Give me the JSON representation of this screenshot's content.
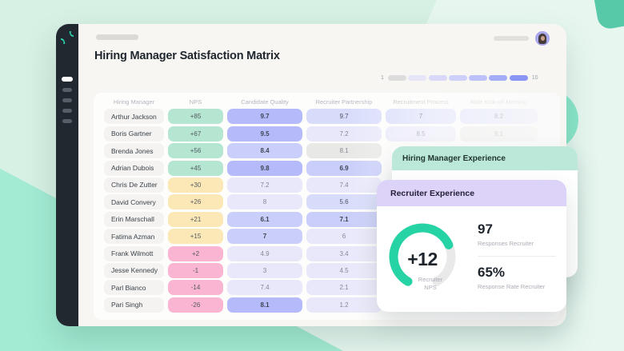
{
  "header": {
    "title": "Hiring Manager Satisfaction Matrix"
  },
  "legend": {
    "min_label": "1",
    "max_label": "10",
    "colors": [
      "#dcdcdc",
      "#e7e5f8",
      "#dad8f8",
      "#cdd1f9",
      "#bcc2f9",
      "#a4adf7",
      "#8a95f4"
    ]
  },
  "sidebar": {
    "nav_items": [
      {
        "active": true
      },
      {
        "active": false
      },
      {
        "active": false
      },
      {
        "active": false
      },
      {
        "active": false
      }
    ]
  },
  "palette": {
    "green": "#b4e6d1",
    "yellow": "#fbe8b6",
    "pink": "#f9b5d2",
    "t1": "#b4bafa",
    "t2": "#c9cefb",
    "t3": "#d8dcfb",
    "t4": "#e9e8fb",
    "gray": "#e8e8e7",
    "nps_text": "#545a62",
    "gauge_teal": "#25d3a5",
    "gauge_track": "#e9e9e9",
    "sidebar_bg": "#212830",
    "logo_teal": "#2bd4a8"
  },
  "table": {
    "columns": [
      "Hiring Manager",
      "NPS",
      "Candidate Quality",
      "Recruiter Partnership",
      "Recruitment Process",
      "Role Kick-off Meeting"
    ],
    "rows": [
      {
        "name": "Arthur Jackson",
        "nps": "+85",
        "nps_tone": "green",
        "cells": [
          {
            "v": "9.7",
            "t": "t1"
          },
          {
            "v": "9.7",
            "t": "t3"
          },
          {
            "v": "7",
            "t": "t3"
          },
          {
            "v": "8.2",
            "t": "t3"
          }
        ]
      },
      {
        "name": "Boris Gartner",
        "nps": "+67",
        "nps_tone": "green",
        "cells": [
          {
            "v": "9.5",
            "t": "t1"
          },
          {
            "v": "7.2",
            "t": "t4"
          },
          {
            "v": "8.5",
            "t": "t4"
          },
          {
            "v": "9.1",
            "t": "gray"
          }
        ]
      },
      {
        "name": "Brenda Jones",
        "nps": "+56",
        "nps_tone": "green",
        "cells": [
          {
            "v": "8.4",
            "t": "t2"
          },
          {
            "v": "8.1",
            "t": "gray"
          },
          null,
          null
        ]
      },
      {
        "name": "Adrian Dubois",
        "nps": "+45",
        "nps_tone": "green",
        "cells": [
          {
            "v": "9.8",
            "t": "t1"
          },
          {
            "v": "6.9",
            "t": "t2"
          },
          null,
          null
        ]
      },
      {
        "name": "Chris De Zutter",
        "nps": "+30",
        "nps_tone": "yellow",
        "cells": [
          {
            "v": "7.2",
            "t": "t4",
            "d": true
          },
          {
            "v": "7.4",
            "t": "t4"
          },
          null,
          null
        ]
      },
      {
        "name": "David Convery",
        "nps": "+26",
        "nps_tone": "yellow",
        "cells": [
          {
            "v": "8",
            "t": "t4",
            "d": true
          },
          {
            "v": "5.6",
            "t": "t3",
            "d": true
          },
          null,
          null
        ]
      },
      {
        "name": "Erin Marschall",
        "nps": "+21",
        "nps_tone": "yellow",
        "cells": [
          {
            "v": "6.1",
            "t": "t2"
          },
          {
            "v": "7.1",
            "t": "t2",
            "d": true
          },
          null,
          null
        ]
      },
      {
        "name": "Fatima Azman",
        "nps": "+15",
        "nps_tone": "yellow",
        "cells": [
          {
            "v": "7",
            "t": "t2"
          },
          {
            "v": "6",
            "t": "t4"
          },
          null,
          null
        ]
      },
      {
        "name": "Frank Wilmott",
        "nps": "+2",
        "nps_tone": "pink",
        "cells": [
          {
            "v": "4.9",
            "t": "t4",
            "d": true
          },
          {
            "v": "3.4",
            "t": "t4",
            "d": true
          },
          null,
          null
        ]
      },
      {
        "name": "Jesse Kennedy",
        "nps": "-1",
        "nps_tone": "pink",
        "cells": [
          {
            "v": "3",
            "t": "t4",
            "d": true
          },
          {
            "v": "4.5",
            "t": "t4"
          },
          null,
          null
        ]
      },
      {
        "name": "Parl Bianco",
        "nps": "-14",
        "nps_tone": "pink",
        "cells": [
          {
            "v": "7.4",
            "t": "t4",
            "d": true
          },
          {
            "v": "2.1",
            "t": "t4"
          },
          null,
          null
        ]
      },
      {
        "name": "Pari Singh",
        "nps": "-26",
        "nps_tone": "pink",
        "cells": [
          {
            "v": "8.1",
            "t": "t1"
          },
          {
            "v": "1.2",
            "t": "t4"
          },
          null,
          null
        ]
      }
    ]
  },
  "cards": {
    "hiring_manager": {
      "title": "Hiring Manager Experience"
    },
    "recruiter": {
      "title": "Recruiter Experience",
      "gauge": {
        "value": "+12",
        "label_line1": "Recruiter",
        "label_line2": "NPS",
        "percent": 72
      },
      "stats": [
        {
          "value": "97",
          "label": "Responses Recruiter"
        },
        {
          "value": "65%",
          "label": "Response Rate Recruiter"
        }
      ]
    }
  }
}
